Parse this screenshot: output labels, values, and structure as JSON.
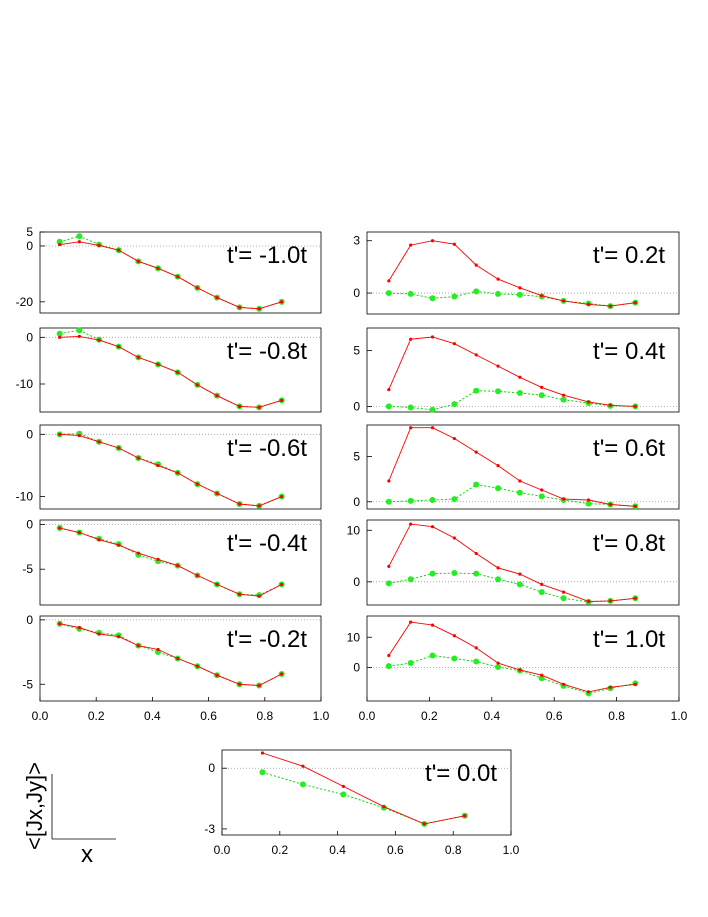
{
  "colors": {
    "red_series": "#ff0000",
    "green_series": "#00dd00",
    "green_marker": "#22ee22",
    "zero_line": "#999999",
    "frame": "#000000"
  },
  "axis_legend": {
    "ylabel": "<[Jx,Jy]>",
    "xlabel": "x"
  },
  "chart_data": [
    {
      "type": "line",
      "title": "t'= -1.0t",
      "x": [
        0.07,
        0.14,
        0.21,
        0.28,
        0.35,
        0.42,
        0.49,
        0.56,
        0.63,
        0.71,
        0.78,
        0.86
      ],
      "xlim": [
        0.0,
        1.0
      ],
      "ylim": [
        -24,
        5
      ],
      "yticks": [
        5,
        0,
        -20
      ],
      "xticks": [],
      "series": [
        {
          "name": "red",
          "values": [
            0.5,
            1.5,
            0.2,
            -1.5,
            -5.5,
            -8,
            -11,
            -15,
            -18.5,
            -22,
            -22.5,
            -20
          ]
        },
        {
          "name": "green",
          "values": [
            1.5,
            3.5,
            0.5,
            -1.5,
            -5.5,
            -8,
            -11,
            -15,
            -18.5,
            -22,
            -22.5,
            -20
          ]
        }
      ]
    },
    {
      "type": "line",
      "title": "t'= 0.2t",
      "x": [
        0.07,
        0.14,
        0.21,
        0.28,
        0.35,
        0.42,
        0.49,
        0.56,
        0.63,
        0.71,
        0.78,
        0.86
      ],
      "xlim": [
        0.0,
        1.0
      ],
      "ylim": [
        -1.2,
        3.5
      ],
      "yticks": [
        3,
        0
      ],
      "xticks": [],
      "series": [
        {
          "name": "red",
          "values": [
            0.7,
            2.75,
            3.0,
            2.8,
            1.6,
            0.8,
            0.3,
            -0.15,
            -0.45,
            -0.65,
            -0.75,
            -0.55
          ]
        },
        {
          "name": "green",
          "values": [
            0.0,
            -0.05,
            -0.3,
            -0.2,
            0.1,
            -0.05,
            -0.1,
            -0.2,
            -0.45,
            -0.6,
            -0.75,
            -0.55
          ]
        }
      ]
    },
    {
      "type": "line",
      "title": "t'= -0.8t",
      "x": [
        0.07,
        0.14,
        0.21,
        0.28,
        0.35,
        0.42,
        0.49,
        0.56,
        0.63,
        0.71,
        0.78,
        0.86
      ],
      "xlim": [
        0.0,
        1.0
      ],
      "ylim": [
        -16,
        2
      ],
      "yticks": [
        0,
        -10
      ],
      "xticks": [],
      "series": [
        {
          "name": "red",
          "values": [
            0,
            0.2,
            -0.6,
            -2,
            -4.3,
            -5.8,
            -7.5,
            -10.2,
            -12.5,
            -14.8,
            -15,
            -13.5
          ]
        },
        {
          "name": "green",
          "values": [
            0.8,
            1.5,
            -0.5,
            -2,
            -4.3,
            -5.8,
            -7.5,
            -10.2,
            -12.5,
            -14.8,
            -15,
            -13.5
          ]
        }
      ]
    },
    {
      "type": "line",
      "title": "t'= 0.4t",
      "x": [
        0.07,
        0.14,
        0.21,
        0.28,
        0.35,
        0.42,
        0.49,
        0.56,
        0.63,
        0.71,
        0.78,
        0.86
      ],
      "xlim": [
        0.0,
        1.0
      ],
      "ylim": [
        -0.5,
        7
      ],
      "yticks": [
        5,
        0
      ],
      "xticks": [],
      "series": [
        {
          "name": "red",
          "values": [
            1.5,
            6,
            6.2,
            5.6,
            4.6,
            3.6,
            2.6,
            1.7,
            1.0,
            0.4,
            0.1,
            0.0
          ]
        },
        {
          "name": "green",
          "values": [
            0,
            -0.1,
            -0.3,
            0.2,
            1.4,
            1.35,
            1.2,
            1.0,
            0.6,
            0.3,
            0.05,
            0.0
          ]
        }
      ]
    },
    {
      "type": "line",
      "title": "t'= -0.6t",
      "x": [
        0.07,
        0.14,
        0.21,
        0.28,
        0.35,
        0.42,
        0.49,
        0.56,
        0.63,
        0.71,
        0.78,
        0.86
      ],
      "xlim": [
        0.0,
        1.0
      ],
      "ylim": [
        -12,
        1.5
      ],
      "yticks": [
        0,
        -10
      ],
      "xticks": [],
      "series": [
        {
          "name": "red",
          "values": [
            0,
            -0.2,
            -1.2,
            -2.2,
            -3.8,
            -5,
            -6.2,
            -8,
            -9.5,
            -11.2,
            -11.5,
            -10
          ]
        },
        {
          "name": "green",
          "values": [
            0,
            0.1,
            -1.2,
            -2.2,
            -3.8,
            -4.8,
            -6.2,
            -8,
            -9.5,
            -11.2,
            -11.5,
            -10
          ]
        }
      ]
    },
    {
      "type": "line",
      "title": "t'= 0.6t",
      "x": [
        0.07,
        0.14,
        0.21,
        0.28,
        0.35,
        0.42,
        0.49,
        0.56,
        0.63,
        0.71,
        0.78,
        0.86
      ],
      "xlim": [
        0.0,
        1.0
      ],
      "ylim": [
        -0.8,
        8.5
      ],
      "yticks": [
        5,
        0
      ],
      "xticks": [],
      "series": [
        {
          "name": "red",
          "values": [
            2.3,
            8.2,
            8.2,
            7.0,
            5.5,
            4.0,
            2.3,
            1.3,
            0.3,
            0.2,
            -0.3,
            -0.5
          ]
        },
        {
          "name": "green",
          "values": [
            0,
            0.1,
            0.2,
            0.3,
            1.9,
            1.5,
            1.0,
            0.6,
            0.2,
            -0.2,
            -0.3,
            -0.5
          ]
        }
      ]
    },
    {
      "type": "line",
      "title": "t'= -0.4t",
      "x": [
        0.07,
        0.14,
        0.21,
        0.28,
        0.35,
        0.42,
        0.49,
        0.56,
        0.63,
        0.71,
        0.78,
        0.86
      ],
      "xlim": [
        0.0,
        1.0
      ],
      "ylim": [
        -9,
        0.5
      ],
      "yticks": [
        0,
        -5
      ],
      "xticks": [],
      "series": [
        {
          "name": "red",
          "values": [
            -0.4,
            -0.9,
            -1.7,
            -2.3,
            -3.2,
            -3.9,
            -4.6,
            -5.7,
            -6.7,
            -7.8,
            -8,
            -6.7
          ]
        },
        {
          "name": "green",
          "values": [
            -0.4,
            -0.9,
            -1.6,
            -2.2,
            -3.4,
            -4.1,
            -4.6,
            -5.7,
            -6.7,
            -7.8,
            -7.9,
            -6.7
          ]
        }
      ]
    },
    {
      "type": "line",
      "title": "t'= 0.8t",
      "x": [
        0.07,
        0.14,
        0.21,
        0.28,
        0.35,
        0.42,
        0.49,
        0.56,
        0.63,
        0.71,
        0.78,
        0.86
      ],
      "xlim": [
        0.0,
        1.0
      ],
      "ylim": [
        -4.5,
        12
      ],
      "yticks": [
        10,
        0
      ],
      "xticks": [],
      "series": [
        {
          "name": "red",
          "values": [
            3,
            11.2,
            10.7,
            8.5,
            5.5,
            2.7,
            1.5,
            -0.5,
            -2,
            -3.8,
            -3.7,
            -3.2
          ]
        },
        {
          "name": "green",
          "values": [
            -0.3,
            0.5,
            1.6,
            1.7,
            1.6,
            0.5,
            -0.5,
            -2,
            -3.2,
            -3.9,
            -3.7,
            -3.2
          ]
        }
      ]
    },
    {
      "type": "line",
      "title": "t'= -0.2t",
      "x": [
        0.07,
        0.14,
        0.21,
        0.28,
        0.35,
        0.42,
        0.49,
        0.56,
        0.63,
        0.71,
        0.78,
        0.86
      ],
      "xlim": [
        0.0,
        1.0
      ],
      "ylim": [
        -6.3,
        0.3
      ],
      "yticks": [
        0,
        -5
      ],
      "xticks": [
        0.0,
        0.2,
        0.4,
        0.6,
        0.8,
        1.0
      ],
      "series": [
        {
          "name": "red",
          "values": [
            -0.3,
            -0.6,
            -1.1,
            -1.3,
            -2.0,
            -2.3,
            -3.0,
            -3.6,
            -4.3,
            -5.0,
            -5.1,
            -4.2
          ]
        },
        {
          "name": "green",
          "values": [
            -0.3,
            -0.7,
            -1.0,
            -1.2,
            -2.0,
            -2.5,
            -3.0,
            -3.6,
            -4.3,
            -5.0,
            -5.1,
            -4.2
          ]
        }
      ]
    },
    {
      "type": "line",
      "title": "t'= 1.0t",
      "x": [
        0.07,
        0.14,
        0.21,
        0.28,
        0.35,
        0.42,
        0.49,
        0.56,
        0.63,
        0.71,
        0.78,
        0.86
      ],
      "xlim": [
        0.0,
        1.0
      ],
      "ylim": [
        -11,
        17
      ],
      "yticks": [
        10,
        0
      ],
      "xticks": [
        0.0,
        0.2,
        0.4,
        0.6,
        0.8,
        1.0
      ],
      "series": [
        {
          "name": "red",
          "values": [
            4,
            15,
            14,
            10.5,
            6.5,
            1.5,
            -0.8,
            -2.5,
            -5.5,
            -8,
            -6.5,
            -5.5
          ]
        },
        {
          "name": "green",
          "values": [
            0.5,
            1.5,
            4,
            3,
            2,
            0.2,
            -1,
            -3.5,
            -6,
            -8.5,
            -6.8,
            -5.2
          ]
        }
      ]
    },
    {
      "type": "line",
      "title": "t'= 0.0t",
      "x": [
        0.14,
        0.28,
        0.42,
        0.56,
        0.7,
        0.84
      ],
      "xlim": [
        0.0,
        1.0
      ],
      "ylim": [
        -3.3,
        0.9
      ],
      "yticks": [
        0,
        -3
      ],
      "xticks": [
        0.0,
        0.2,
        0.4,
        0.6,
        0.8,
        1.0
      ],
      "series": [
        {
          "name": "red",
          "values": [
            0.75,
            0.1,
            -0.9,
            -1.9,
            -2.75,
            -2.35
          ]
        },
        {
          "name": "green",
          "values": [
            -0.2,
            -0.8,
            -1.3,
            -1.95,
            -2.75,
            -2.35
          ]
        }
      ]
    }
  ]
}
